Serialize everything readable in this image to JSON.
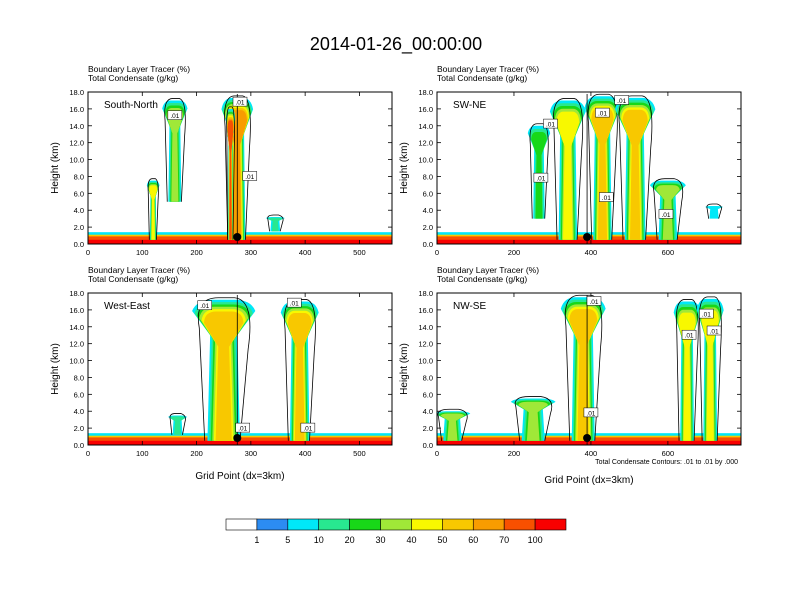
{
  "title": "2014-01-26_00:00:00",
  "subtitle_line1": "Boundary Layer Tracer   (%)",
  "subtitle_line2": "Total Condensate   (g/kg)",
  "ylabel": "Height (km)",
  "xlabel": "Grid Point (dx=3km)",
  "contour_note": "Total Condensate Contours: .01 to .01 by .000",
  "colors": {
    "c0": "#ffffff",
    "c1": "#2c8cf2",
    "c2": "#00e8f8",
    "c3": "#28e890",
    "c4": "#18d818",
    "c5": "#a0e838",
    "c6": "#f8f800",
    "c7": "#f8c800",
    "c8": "#f89c00",
    "c9": "#f85000",
    "c10": "#f80000"
  },
  "colorbar": {
    "labels": [
      "1",
      "5",
      "10",
      "20",
      "30",
      "40",
      "50",
      "60",
      "70",
      "100"
    ]
  },
  "chart_data": [
    {
      "type": "heatmap",
      "panel_label": "South-North",
      "ylim": [
        0,
        18
      ],
      "yticks": [
        "0.0",
        "2.0",
        "4.0",
        "6.0",
        "8.0",
        "10.0",
        "12.0",
        "14.0",
        "16.0",
        "18.0"
      ],
      "xlim": [
        0,
        560
      ],
      "xticks": [
        0,
        100,
        200,
        300,
        400,
        500
      ],
      "marker_x": 275,
      "contour_labels": [
        {
          "text": ".01",
          "x": 160,
          "y": 15.2
        },
        {
          "text": ".01",
          "x": 280,
          "y": 16.8
        },
        {
          "text": ".01",
          "x": 298,
          "y": 8.0
        }
      ],
      "cells": [
        {
          "x": [
            110,
            130
          ],
          "top": 7.5,
          "peak": 5
        },
        {
          "x": [
            140,
            180
          ],
          "top": 17.0,
          "base": 5.0,
          "peak": 4
        },
        {
          "x": [
            250,
            300
          ],
          "top": 17.3,
          "peak": 7
        },
        {
          "x": [
            255,
            270
          ],
          "top": 16.0,
          "peak": 8
        },
        {
          "x": [
            330,
            360
          ],
          "top": 3.2,
          "base": 1.5,
          "peak": 2
        }
      ]
    },
    {
      "type": "heatmap",
      "panel_label": "SW-NE",
      "ylim": [
        0,
        18
      ],
      "yticks": [
        "0.0",
        "2.0",
        "4.0",
        "6.0",
        "8.0",
        "10.0",
        "12.0",
        "14.0",
        "16.0",
        "18.0"
      ],
      "xlim": [
        0,
        790
      ],
      "xticks": [
        0,
        200,
        400,
        600
      ],
      "marker_x": 390,
      "contour_labels": [
        {
          "text": ".01",
          "x": 295,
          "y": 14.2
        },
        {
          "text": ".01",
          "x": 270,
          "y": 7.8
        },
        {
          "text": ".01",
          "x": 430,
          "y": 15.5
        },
        {
          "text": ".01",
          "x": 480,
          "y": 17.0
        },
        {
          "text": ".01",
          "x": 440,
          "y": 5.5
        },
        {
          "text": ".01",
          "x": 595,
          "y": 3.5
        }
      ],
      "cells": [
        {
          "x": [
            240,
            290
          ],
          "top": 14.0,
          "base": 3.0,
          "peak": 3
        },
        {
          "x": [
            300,
            380
          ],
          "top": 17.0,
          "peak": 5
        },
        {
          "x": [
            390,
            470
          ],
          "top": 17.5,
          "peak": 6
        },
        {
          "x": [
            470,
            560
          ],
          "top": 17.3,
          "peak": 6
        },
        {
          "x": [
            560,
            640
          ],
          "top": 7.5,
          "peak": 4
        },
        {
          "x": [
            700,
            740
          ],
          "top": 4.5,
          "base": 3.0,
          "peak": 1
        }
      ]
    },
    {
      "type": "heatmap",
      "panel_label": "West-East",
      "ylim": [
        0,
        18
      ],
      "yticks": [
        "0.0",
        "2.0",
        "4.0",
        "6.0",
        "8.0",
        "10.0",
        "12.0",
        "14.0",
        "16.0",
        "18.0"
      ],
      "xlim": [
        0,
        560
      ],
      "xticks": [
        0,
        100,
        200,
        300,
        400,
        500
      ],
      "marker_x": 275,
      "contour_labels": [
        {
          "text": ".01",
          "x": 215,
          "y": 16.5
        },
        {
          "text": ".01",
          "x": 285,
          "y": 2.0
        },
        {
          "text": ".01",
          "x": 380,
          "y": 16.8
        },
        {
          "text": ".01",
          "x": 405,
          "y": 2.0
        }
      ],
      "cells": [
        {
          "x": [
            200,
            300
          ],
          "top": 17.2,
          "peak": 6
        },
        {
          "x": [
            360,
            420
          ],
          "top": 17.0,
          "peak": 6
        },
        {
          "x": [
            150,
            180
          ],
          "top": 3.5,
          "base": 1.2,
          "peak": 2
        }
      ]
    },
    {
      "type": "heatmap",
      "panel_label": "NW-SE",
      "ylim": [
        0,
        18
      ],
      "yticks": [
        "0.0",
        "2.0",
        "4.0",
        "6.0",
        "8.0",
        "10.0",
        "12.0",
        "14.0",
        "16.0",
        "18.0"
      ],
      "xlim": [
        0,
        790
      ],
      "xticks": [
        0,
        200,
        400,
        600
      ],
      "marker_x": 390,
      "contour_labels": [
        {
          "text": ".01",
          "x": 408,
          "y": 17.0
        },
        {
          "text": ".01",
          "x": 400,
          "y": 3.8
        },
        {
          "text": ".01",
          "x": 655,
          "y": 13.0
        },
        {
          "text": ".01",
          "x": 700,
          "y": 15.5
        },
        {
          "text": ".01",
          "x": 720,
          "y": 13.5
        }
      ],
      "cells": [
        {
          "x": [
            330,
            430
          ],
          "top": 17.5,
          "peak": 6
        },
        {
          "x": [
            620,
            680
          ],
          "top": 17.0,
          "peak": 5
        },
        {
          "x": [
            680,
            740
          ],
          "top": 17.3,
          "peak": 5
        },
        {
          "x": [
            200,
            300
          ],
          "top": 5.5,
          "peak": 4
        },
        {
          "x": [
            0,
            80
          ],
          "top": 4.0,
          "peak": 4
        }
      ]
    }
  ]
}
